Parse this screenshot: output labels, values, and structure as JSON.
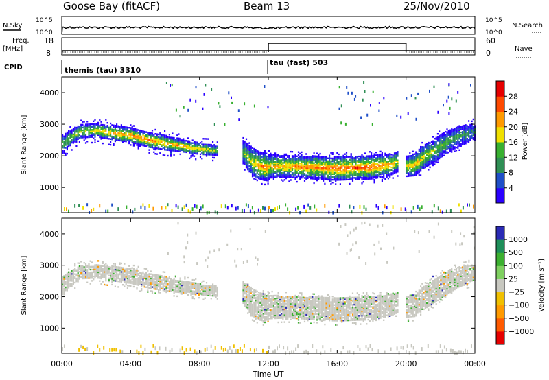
{
  "header": {
    "station": "Goose Bay (fitACF)",
    "beam": "Beam 13",
    "date": "25/Nov/2010"
  },
  "noise_panel": {
    "left_label": "N.Sky",
    "right_label": "N.Search",
    "right_ticks": [
      "10^5",
      "10^0"
    ],
    "left_ticks": [
      "10^5",
      "10^0"
    ]
  },
  "freq_panel": {
    "left_label_top": "Freq.",
    "left_label_bottom": "[MHz]",
    "left_ticks": [
      "18",
      "8"
    ],
    "right_label": "Nave",
    "right_ticks": [
      "60",
      "0"
    ],
    "nave_step_start_hour": 12,
    "nave_step_end_hour": 20
  },
  "cpid": {
    "label": "CPID",
    "segments": [
      {
        "name": "themis (tau) 3310",
        "start_hour": 0
      },
      {
        "name": "tau (fast) 503",
        "start_hour": 12
      }
    ]
  },
  "x_axis": {
    "label": "Time UT",
    "ticks": [
      "00:00",
      "04:00",
      "08:00",
      "12:00",
      "16:00",
      "20:00",
      "00:00"
    ]
  },
  "power_colorbar": {
    "label": "Power [dB]",
    "ticks": [
      "28",
      "24",
      "20",
      "16",
      "12",
      "8",
      "4"
    ],
    "colors": [
      "#2a00ff",
      "#1f4fc8",
      "#2f8f55",
      "#38b030",
      "#f0e000",
      "#ff9a00",
      "#ff4a00",
      "#e60000"
    ]
  },
  "velocity_colorbar": {
    "label": "Velocity [m s⁻¹]",
    "ticks": [
      "1000",
      "500",
      "100",
      "25",
      "−25",
      "−100",
      "−500",
      "−1000"
    ],
    "colors": [
      "#2a2ab5",
      "#1e8f5a",
      "#3cb030",
      "#7fd060",
      "#c8c8c0",
      "#f0c000",
      "#ff9a00",
      "#ff5a00",
      "#e60000"
    ]
  },
  "chart_data": [
    {
      "type": "heatmap",
      "panel": "power",
      "ylabel": "Slant Range [km]",
      "xlabel": "Time UT",
      "xlim": [
        0,
        24
      ],
      "ylim": [
        200,
        4500
      ],
      "yticks": [
        1000,
        2000,
        3000,
        4000
      ],
      "bands": [
        {
          "x": [
            0.0,
            1.0,
            2.0,
            3.0,
            4.0,
            5.0,
            6.0,
            7.0,
            8.0,
            9.0
          ],
          "center": [
            2350,
            2750,
            2780,
            2700,
            2620,
            2480,
            2380,
            2280,
            2200,
            2150
          ],
          "width": [
            450,
            350,
            350,
            380,
            380,
            400,
            380,
            300,
            300,
            250
          ],
          "peak": [
            14,
            16,
            20,
            22,
            24,
            24,
            22,
            22,
            20,
            16
          ]
        },
        {
          "x": [
            10.5,
            11.0,
            11.5,
            12.0
          ],
          "center": [
            2100,
            1800,
            1650,
            1600
          ],
          "width": [
            600,
            700,
            700,
            700
          ],
          "peak": [
            14,
            18,
            24,
            26
          ]
        },
        {
          "x": [
            12.0,
            13.0,
            14.0,
            15.0,
            16.0,
            17.0,
            18.0,
            19.0,
            19.5
          ],
          "center": [
            1650,
            1650,
            1620,
            1600,
            1580,
            1600,
            1620,
            1700,
            1800
          ],
          "width": [
            600,
            550,
            550,
            600,
            600,
            600,
            600,
            550,
            500
          ],
          "peak": [
            20,
            22,
            24,
            24,
            26,
            26,
            26,
            22,
            20
          ]
        },
        {
          "x": [
            20.0,
            20.5,
            21.0,
            22.0,
            23.0,
            24.0
          ],
          "center": [
            1650,
            1700,
            1950,
            2300,
            2600,
            2750
          ],
          "width": [
            500,
            550,
            600,
            600,
            500,
            400
          ],
          "peak": [
            20,
            22,
            18,
            14,
            12,
            10
          ]
        }
      ]
    },
    {
      "type": "heatmap",
      "panel": "velocity",
      "ylabel": "Slant Range [km]",
      "xlabel": "Time UT",
      "xlim": [
        0,
        24
      ],
      "ylim": [
        200,
        4500
      ],
      "yticks": [
        1000,
        2000,
        3000,
        4000
      ],
      "dominant_velocity_range": [
        -25,
        25
      ],
      "ground_scatter_band_start_velocity": [
        -100,
        -25
      ]
    }
  ]
}
